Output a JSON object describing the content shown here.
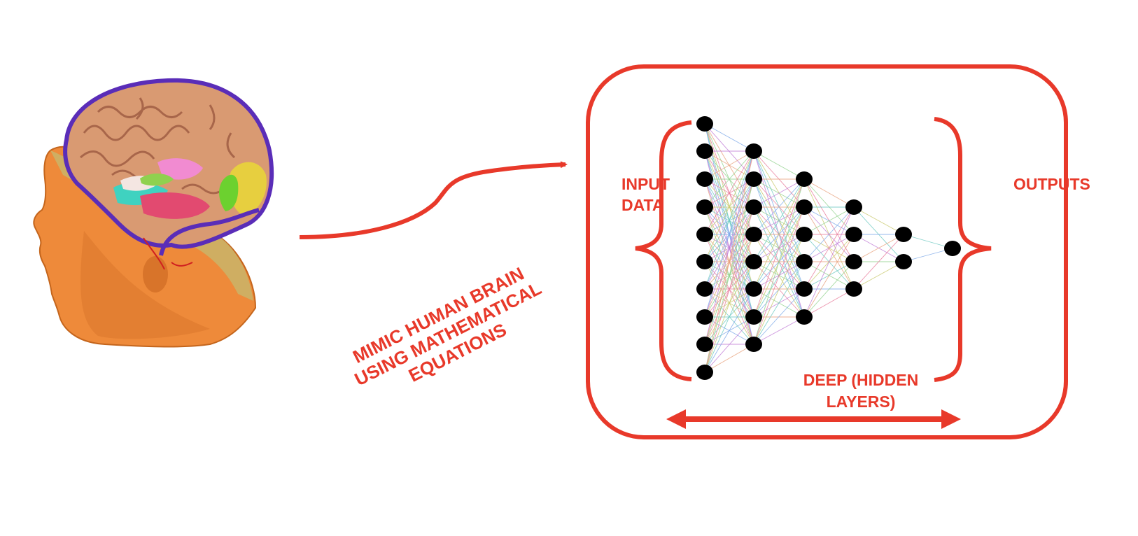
{
  "diagram": {
    "caption_line_1": "MIMIC HUMAN BRAIN",
    "caption_line_2": "USING MATHEMATICAL",
    "caption_line_3": "EQUATIONS",
    "input_line_1": "INPUT",
    "input_line_2": "DATA",
    "output_label": "OUTPUTS",
    "hidden_line_1": "DEEP (HIDDEN",
    "hidden_line_2": "LAYERS)",
    "accent_color": "#e8392a",
    "node_color": "#000000",
    "brain_image_icon": "head-with-brain-3d-icon"
  }
}
